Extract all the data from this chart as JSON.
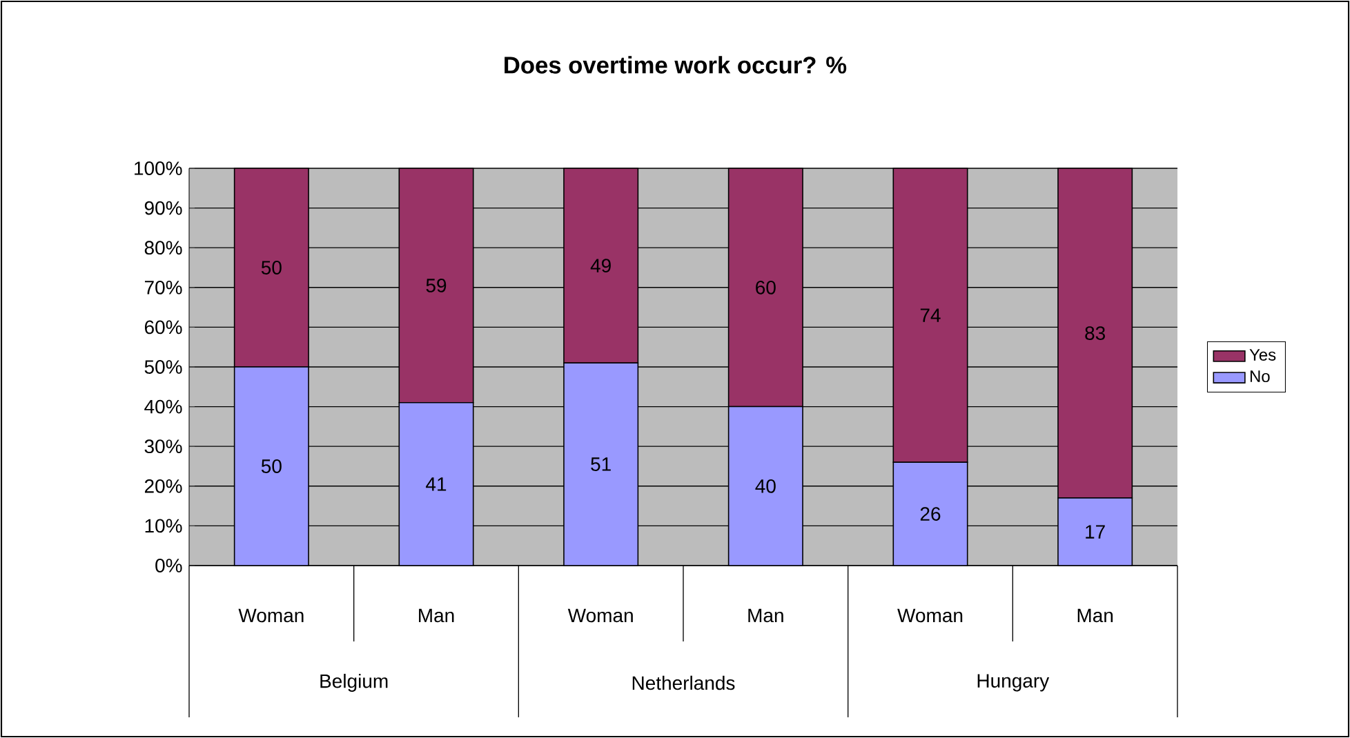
{
  "chart_data": {
    "type": "bar",
    "title": "Does overtime work occur?  %",
    "stacked": true,
    "categories": [
      "Woman",
      "Man",
      "Woman",
      "Man",
      "Woman",
      "Man"
    ],
    "annotations": [
      "Belgium",
      "Netherlands",
      "Hungary"
    ],
    "series": [
      {
        "name": "No",
        "color": "#9999ff",
        "values": [
          50,
          41,
          51,
          40,
          26,
          17
        ]
      },
      {
        "name": "Yes",
        "color": "#993366",
        "values": [
          50,
          59,
          49,
          60,
          74,
          83
        ]
      }
    ],
    "ylim": [
      0,
      100
    ],
    "yticks": [
      {
        "value": 0,
        "label": "0%"
      },
      {
        "value": 10,
        "label": "10%"
      },
      {
        "value": 20,
        "label": "20%"
      },
      {
        "value": 30,
        "label": "30%"
      },
      {
        "value": 40,
        "label": "40%"
      },
      {
        "value": 50,
        "label": "50%"
      },
      {
        "value": 60,
        "label": "60%"
      },
      {
        "value": 70,
        "label": "70%"
      },
      {
        "value": 80,
        "label": "80%"
      },
      {
        "value": 90,
        "label": "90%"
      },
      {
        "value": 100,
        "label": "100%"
      }
    ],
    "grid": "y",
    "legend": "right",
    "data_labels": true
  }
}
